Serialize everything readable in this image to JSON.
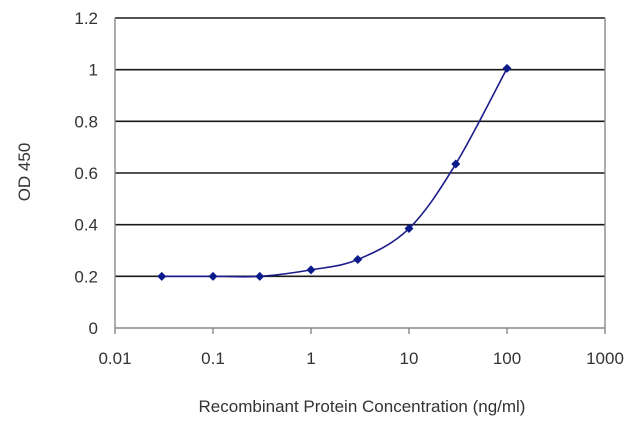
{
  "chart_data": {
    "type": "line",
    "xlabel": "Recombinant Protein Concentration (ng/ml)",
    "ylabel": "OD 450",
    "xscale": "log",
    "xlim": [
      0.01,
      1000
    ],
    "ylim": [
      0,
      1.2
    ],
    "x_tick_labels": [
      "0.01",
      "0.1",
      "1",
      "10",
      "100",
      "1000"
    ],
    "x_tick_values": [
      0.01,
      0.1,
      1,
      10,
      100,
      1000
    ],
    "y_tick_labels": [
      "0",
      "0.2",
      "0.4",
      "0.6",
      "0.8",
      "1",
      "1.2"
    ],
    "y_tick_values": [
      0,
      0.2,
      0.4,
      0.6,
      0.8,
      1.0,
      1.2
    ],
    "grid": "horizontal",
    "series": [
      {
        "x": [
          0.03,
          0.1,
          0.3,
          1,
          3,
          10,
          30,
          100
        ],
        "y": [
          0.2,
          0.2,
          0.2,
          0.225,
          0.265,
          0.385,
          0.635,
          1.005
        ]
      }
    ],
    "colors": {
      "line": "#1c1c8c",
      "marker": "#0a1a8a",
      "grid": "#1a1a1a",
      "frame": "#888888"
    }
  }
}
